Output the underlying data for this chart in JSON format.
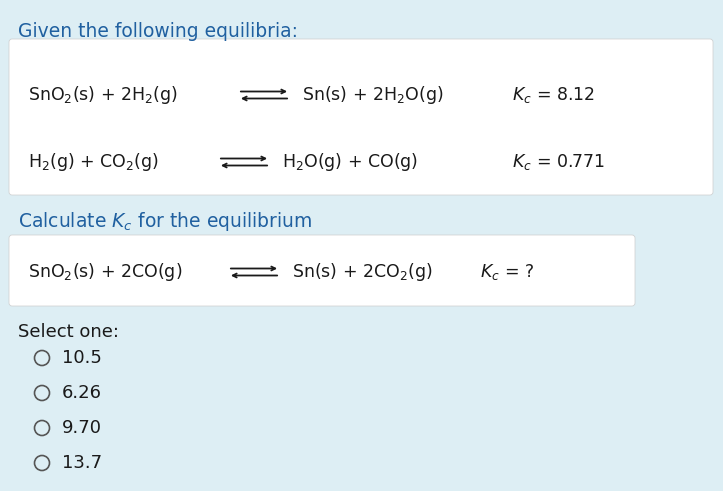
{
  "background_color": "#ddeef4",
  "box_color": "#ffffff",
  "text_color": "#1a1a1a",
  "title": "Given the following equilibria:",
  "title_color": "#2060a0",
  "calc_color": "#2060a0",
  "eq1_left": "SnO$_2$(s) + 2H$_2$(g)",
  "eq1_right": "Sn(s) + 2H$_2$O(g)",
  "eq1_k": "$K_c$ = 8.12",
  "eq2_left": "H$_2$(g) + CO$_2$(g)",
  "eq2_right": "H$_2$O(g) + CO(g)",
  "eq2_k": "$K_c$ = 0.771",
  "calc_text": "Calculate $K_c$ for the equilibrium",
  "eq3_left": "SnO$_2$(s) + 2CO(g)",
  "eq3_right": "Sn(s) + 2CO$_2$(g)",
  "eq3_k": "$K_c$ = ?",
  "select_text": "Select one:",
  "options": [
    "10.5",
    "6.26",
    "9.70",
    "13.7"
  ],
  "fig_width": 7.23,
  "fig_height": 4.91,
  "dpi": 100
}
